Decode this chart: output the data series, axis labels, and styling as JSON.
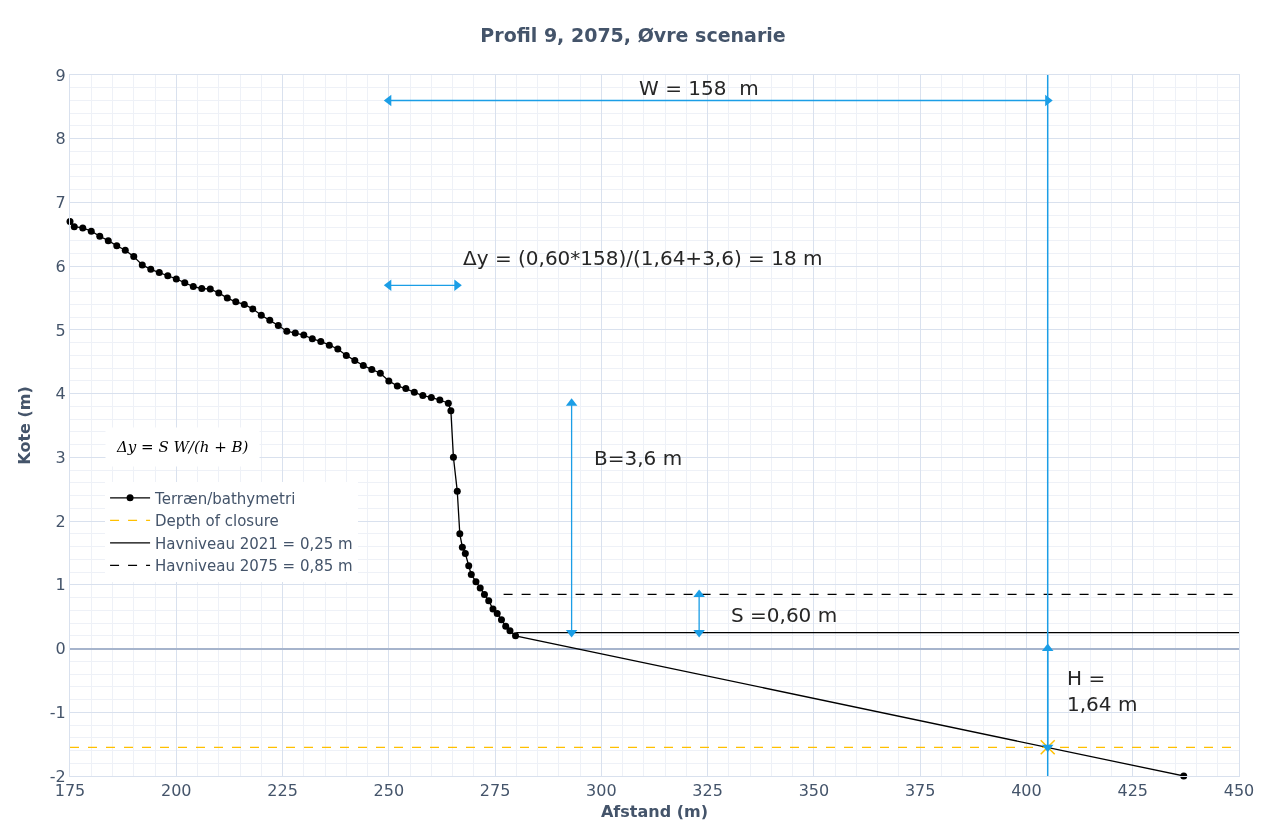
{
  "chart_data": {
    "type": "line",
    "title": "Profil 9, 2075, Øvre scenarie",
    "xlabel": "Afstand (m)",
    "ylabel": "Kote (m)",
    "series": [
      {
        "name": "Terræn/bathymetri",
        "color": "#000000",
        "marker": "circle",
        "line_style": "solid",
        "x": [
          175,
          176,
          178,
          180,
          182,
          184,
          186,
          188,
          190,
          192,
          194,
          196,
          198,
          200,
          202,
          204,
          206,
          208,
          210,
          212,
          214,
          216,
          218,
          220,
          222,
          224,
          226,
          228,
          230,
          232,
          234,
          236,
          238,
          240,
          242,
          244,
          246,
          248,
          250,
          252,
          254,
          256,
          258,
          260,
          262,
          264,
          264.6,
          265.2,
          266.1,
          266.7,
          267.3,
          268.0,
          268.8,
          269.4,
          270.5,
          271.5,
          272.5,
          273.5,
          274.5,
          275.5,
          276.5,
          277.5,
          278.5,
          279.8,
          437
        ],
        "values": [
          6.7,
          6.62,
          6.6,
          6.55,
          6.47,
          6.4,
          6.32,
          6.25,
          6.15,
          6.02,
          5.95,
          5.9,
          5.85,
          5.8,
          5.74,
          5.68,
          5.65,
          5.64,
          5.58,
          5.5,
          5.44,
          5.4,
          5.33,
          5.23,
          5.15,
          5.07,
          4.98,
          4.95,
          4.92,
          4.86,
          4.82,
          4.76,
          4.7,
          4.6,
          4.52,
          4.44,
          4.38,
          4.32,
          4.2,
          4.12,
          4.08,
          4.02,
          3.97,
          3.94,
          3.9,
          3.85,
          3.73,
          3.0,
          2.47,
          1.8,
          1.59,
          1.49,
          1.3,
          1.16,
          1.05,
          0.95,
          0.85,
          0.75,
          0.62,
          0.55,
          0.45,
          0.35,
          0.28,
          0.2,
          -2.0
        ]
      },
      {
        "name": "Depth of closure",
        "color": "#ffc000",
        "marker": "none",
        "line_style": "dashed",
        "x": [
          175,
          450
        ],
        "values": [
          -1.55,
          -1.55
        ]
      },
      {
        "name": "Havniveau 2021 = 0,25 m",
        "color": "#000000",
        "marker": "none",
        "line_style": "solid",
        "x": [
          280,
          450
        ],
        "values": [
          0.25,
          0.25
        ]
      },
      {
        "name": "Havniveau 2075 = 0,85 m",
        "color": "#000000",
        "marker": "none",
        "line_style": "dashed",
        "x": [
          277,
          450
        ],
        "values": [
          0.85,
          0.85
        ]
      },
      {
        "type": "scatter",
        "color": "#ffc000",
        "marker": "cross",
        "x": [
          405
        ],
        "values": [
          -1.55
        ]
      },
      {
        "color": "#1b9ee6",
        "marker": "triangle",
        "line_style": "solid",
        "x": [
          250,
          405
        ],
        "values": [
          8.6,
          8.6
        ]
      },
      {
        "color": "#1b9ee6",
        "marker": "triangle",
        "line_style": "solid",
        "x": [
          250,
          266
        ],
        "values": [
          5.7,
          5.7
        ]
      },
      {
        "color": "#1b9ee6",
        "marker": "triangle",
        "line_style": "solid",
        "x": [
          293,
          293
        ],
        "values": [
          0.25,
          3.85
        ]
      },
      {
        "color": "#1b9ee6",
        "marker": "triangle",
        "line_style": "solid",
        "x": [
          323,
          323
        ],
        "values": [
          0.25,
          0.85
        ]
      },
      {
        "color": "#1b9ee6",
        "marker": "triangle",
        "line_style": "solid",
        "x": [
          405,
          405
        ],
        "values": [
          -1.55,
          0
        ]
      }
    ],
    "ref_lines": [
      {
        "axis": "x",
        "value": 405,
        "color": "#1b9ee6"
      }
    ],
    "annotations": [
      "W = 158  m",
      "Δy = (0,60*158)/(1,64+3,6) = 18 m",
      "B=3,6 m",
      "S =0,60 m",
      "H =\n1,64 m",
      "Δy = S W/(h + B)"
    ],
    "xlim": [
      175,
      450
    ],
    "xticks": [
      175,
      200,
      225,
      250,
      275,
      300,
      325,
      350,
      375,
      400,
      425,
      450
    ],
    "ylim": [
      -2,
      9
    ],
    "yticks": [
      -2,
      -1,
      0,
      1,
      2,
      3,
      4,
      5,
      6,
      7,
      8,
      9
    ],
    "grid": true,
    "legend": "left"
  }
}
